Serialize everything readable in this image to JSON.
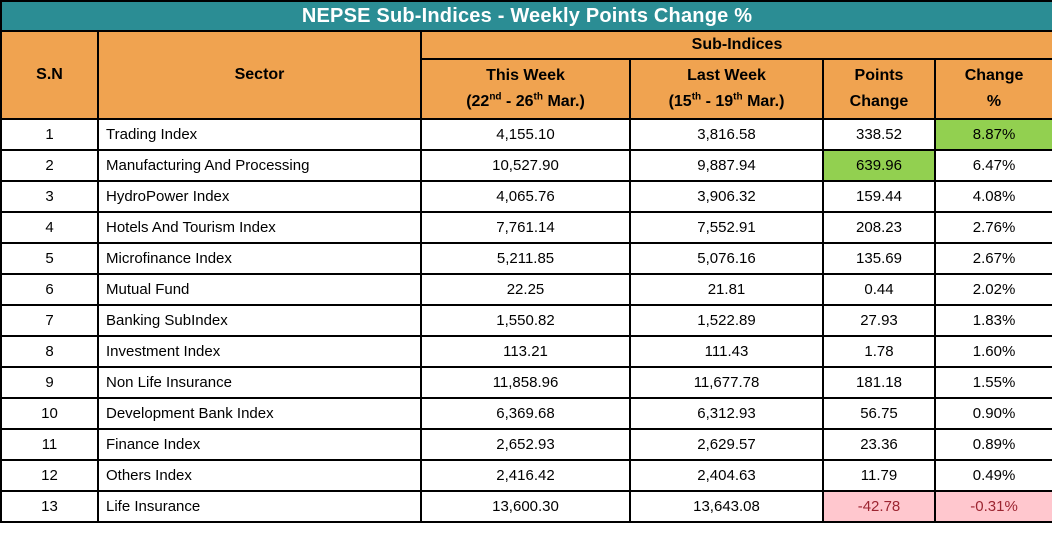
{
  "colors": {
    "title_bg": "#2B8D94",
    "title_text": "#FFFFFF",
    "header_bg": "#F0A350",
    "header_text": "#000000",
    "positive_highlight": "#92D050",
    "negative_highlight_bg": "#FFC7CE",
    "negative_highlight_text": "#9C2531",
    "border": "#000000"
  },
  "chart_data": {
    "type": "table",
    "title": "NEPSE Sub-Indices - Weekly Points Change %",
    "header": {
      "sn": "S.N",
      "sector": "Sector",
      "sub_indices": "Sub-Indices",
      "this_week": {
        "title": "This Week",
        "d1": "(22",
        "s1": "nd",
        "d2": " - 26",
        "s2": "th",
        "d3": " Mar.)"
      },
      "last_week": {
        "title": "Last Week",
        "d1": "(15",
        "s1": "th",
        "d2": " - 19",
        "s2": "th",
        "d3": " Mar.)"
      },
      "points_change": {
        "line1": "Points",
        "line2": "Change"
      },
      "change_pct": {
        "line1": "Change",
        "line2": "%"
      }
    },
    "rows": [
      {
        "sn": "1",
        "sector": "Trading Index",
        "this_week": "4,155.10",
        "last_week": "3,816.58",
        "points_change": "338.52",
        "change_pct": "8.87%",
        "points_change_highlight": "none",
        "change_pct_highlight": "green"
      },
      {
        "sn": "2",
        "sector": "Manufacturing And Processing",
        "this_week": "10,527.90",
        "last_week": "9,887.94",
        "points_change": "639.96",
        "change_pct": "6.47%",
        "points_change_highlight": "green",
        "change_pct_highlight": "none"
      },
      {
        "sn": "3",
        "sector": "HydroPower Index",
        "this_week": "4,065.76",
        "last_week": "3,906.32",
        "points_change": "159.44",
        "change_pct": "4.08%",
        "points_change_highlight": "none",
        "change_pct_highlight": "none"
      },
      {
        "sn": "4",
        "sector": "Hotels And Tourism Index",
        "this_week": "7,761.14",
        "last_week": "7,552.91",
        "points_change": "208.23",
        "change_pct": "2.76%",
        "points_change_highlight": "none",
        "change_pct_highlight": "none"
      },
      {
        "sn": "5",
        "sector": "Microfinance Index",
        "this_week": "5,211.85",
        "last_week": "5,076.16",
        "points_change": "135.69",
        "change_pct": "2.67%",
        "points_change_highlight": "none",
        "change_pct_highlight": "none"
      },
      {
        "sn": "6",
        "sector": "Mutual Fund",
        "this_week": "22.25",
        "last_week": "21.81",
        "points_change": "0.44",
        "change_pct": "2.02%",
        "points_change_highlight": "none",
        "change_pct_highlight": "none"
      },
      {
        "sn": "7",
        "sector": "Banking SubIndex",
        "this_week": "1,550.82",
        "last_week": "1,522.89",
        "points_change": "27.93",
        "change_pct": "1.83%",
        "points_change_highlight": "none",
        "change_pct_highlight": "none"
      },
      {
        "sn": "8",
        "sector": "Investment Index",
        "this_week": "113.21",
        "last_week": "111.43",
        "points_change": "1.78",
        "change_pct": "1.60%",
        "points_change_highlight": "none",
        "change_pct_highlight": "none"
      },
      {
        "sn": "9",
        "sector": "Non Life Insurance",
        "this_week": "11,858.96",
        "last_week": "11,677.78",
        "points_change": "181.18",
        "change_pct": "1.55%",
        "points_change_highlight": "none",
        "change_pct_highlight": "none"
      },
      {
        "sn": "10",
        "sector": "Development Bank Index",
        "this_week": "6,369.68",
        "last_week": "6,312.93",
        "points_change": "56.75",
        "change_pct": "0.90%",
        "points_change_highlight": "none",
        "change_pct_highlight": "none"
      },
      {
        "sn": "11",
        "sector": "Finance Index",
        "this_week": "2,652.93",
        "last_week": "2,629.57",
        "points_change": "23.36",
        "change_pct": "0.89%",
        "points_change_highlight": "none",
        "change_pct_highlight": "none"
      },
      {
        "sn": "12",
        "sector": "Others Index",
        "this_week": "2,416.42",
        "last_week": "2,404.63",
        "points_change": "11.79",
        "change_pct": "0.49%",
        "points_change_highlight": "none",
        "change_pct_highlight": "none"
      },
      {
        "sn": "13",
        "sector": "Life Insurance",
        "this_week": "13,600.30",
        "last_week": "13,643.08",
        "points_change": "-42.78",
        "change_pct": "-0.31%",
        "points_change_highlight": "red",
        "change_pct_highlight": "red"
      }
    ]
  }
}
